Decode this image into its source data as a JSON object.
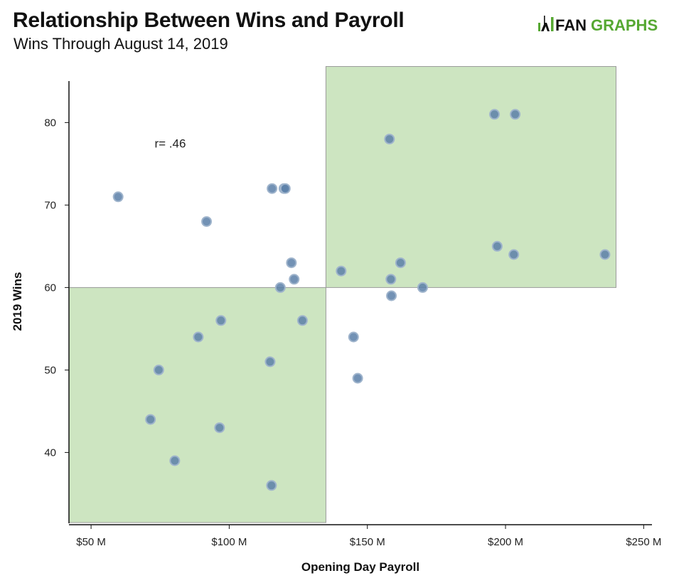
{
  "header": {
    "title": "Relationship Between Wins and Payroll",
    "subtitle": "Wins Through August 14, 2019",
    "logo_text_left": "FAN",
    "logo_text_right": "GRAPHS"
  },
  "colors": {
    "point_fill": "#5b7fa8",
    "point_stroke": "#9fb4cc",
    "shade_fill": "#cde5c1",
    "shade_stroke": "#9a9a9a",
    "logo_dark": "#111111",
    "logo_green": "#56a832"
  },
  "chart_data": {
    "type": "scatter",
    "title": "Relationship Between Wins and Payroll",
    "subtitle": "Wins Through August 14, 2019",
    "xlabel": "Opening Day Payroll",
    "ylabel": "2019 Wins",
    "xlim": [
      42,
      253
    ],
    "ylim": [
      31.5,
      86.5
    ],
    "x_unit": "$M",
    "x_ticks": [
      50,
      100,
      150,
      200,
      250
    ],
    "x_tick_labels": [
      "$50 M",
      "$100 M",
      "$150 M",
      "$200 M",
      "$250 M"
    ],
    "y_ticks": [
      40,
      50,
      60,
      70,
      80
    ],
    "y_tick_labels": [
      "40",
      "50",
      "60",
      "70",
      "80"
    ],
    "grid": false,
    "annotations": [
      {
        "text": "r= .46",
        "x": 73,
        "y": 77.5
      }
    ],
    "shaded_regions": [
      {
        "x0": 42,
        "x1": 135,
        "y0": 31.5,
        "y1": 60
      },
      {
        "x0": 135,
        "x1": 240,
        "y0": 60,
        "y1": 87
      }
    ],
    "points": [
      {
        "x": 59.8,
        "y": 71
      },
      {
        "x": 91.8,
        "y": 68
      },
      {
        "x": 115.5,
        "y": 72
      },
      {
        "x": 119.8,
        "y": 72
      },
      {
        "x": 120.3,
        "y": 72
      },
      {
        "x": 122.5,
        "y": 63
      },
      {
        "x": 123.5,
        "y": 61
      },
      {
        "x": 118.5,
        "y": 60
      },
      {
        "x": 126.5,
        "y": 56
      },
      {
        "x": 97.0,
        "y": 56
      },
      {
        "x": 88.8,
        "y": 54
      },
      {
        "x": 114.8,
        "y": 51
      },
      {
        "x": 74.5,
        "y": 50
      },
      {
        "x": 71.5,
        "y": 44
      },
      {
        "x": 96.5,
        "y": 43
      },
      {
        "x": 80.3,
        "y": 39
      },
      {
        "x": 115.3,
        "y": 36
      },
      {
        "x": 140.5,
        "y": 62
      },
      {
        "x": 158.0,
        "y": 78
      },
      {
        "x": 158.5,
        "y": 61
      },
      {
        "x": 162.0,
        "y": 63
      },
      {
        "x": 158.7,
        "y": 59
      },
      {
        "x": 170.0,
        "y": 60
      },
      {
        "x": 145.0,
        "y": 54
      },
      {
        "x": 146.5,
        "y": 49
      },
      {
        "x": 196.0,
        "y": 81
      },
      {
        "x": 203.5,
        "y": 81
      },
      {
        "x": 197.0,
        "y": 65
      },
      {
        "x": 203.0,
        "y": 64
      },
      {
        "x": 236.0,
        "y": 64
      }
    ]
  }
}
